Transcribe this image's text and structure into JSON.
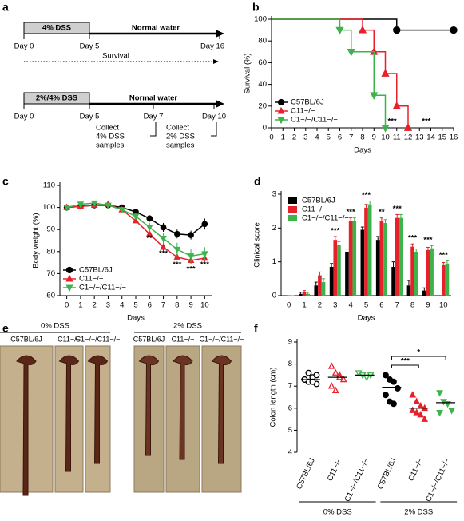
{
  "timeline": {
    "label": "a",
    "protocols": [
      {
        "treatment": "4% DSS",
        "after": "Normal water",
        "days": [
          "Day 0",
          "Day 5",
          "Day 16"
        ],
        "note": "Survival"
      },
      {
        "treatment": "2%/4% DSS",
        "after": "Normal water",
        "days": [
          "Day 0",
          "Day 5",
          "Day 7",
          "Day 10"
        ],
        "collect": [
          [
            "Collect",
            "4% DSS",
            "samples"
          ],
          [
            "Collect",
            "2% DSS",
            "samples"
          ]
        ]
      }
    ]
  },
  "chart_data": [
    {
      "type": "step",
      "label": "b",
      "xlabel": "Days",
      "ylabel": "Survival (%)",
      "xlim": [
        0,
        16
      ],
      "xticks": [
        0,
        1,
        2,
        3,
        4,
        5,
        6,
        7,
        8,
        9,
        10,
        11,
        12,
        13,
        14,
        15,
        16
      ],
      "ylim": [
        0,
        100
      ],
      "yticks": [
        0,
        20,
        40,
        60,
        80,
        100
      ],
      "legend": "lower left",
      "series": [
        {
          "name": "C57BL/6J",
          "color": "#000000",
          "marker": "circle",
          "x": [
            0,
            11,
            16
          ],
          "values": [
            100,
            90,
            90
          ]
        },
        {
          "name": "C11−/−",
          "color": "#e8202a",
          "marker": "triangle",
          "x": [
            0,
            8,
            9,
            10,
            11,
            12
          ],
          "values": [
            100,
            90,
            70,
            50,
            20,
            0
          ]
        },
        {
          "name": "C1−/−/C11−/−",
          "color": "#3cb44b",
          "marker": "down",
          "x": [
            0,
            6,
            7,
            9,
            10
          ],
          "values": [
            100,
            90,
            70,
            30,
            0
          ]
        }
      ],
      "annotations": [
        "***",
        "***"
      ]
    },
    {
      "type": "line",
      "label": "c",
      "xlabel": "Days",
      "ylabel": "Body weight (%)",
      "xlim": [
        -0.5,
        10.5
      ],
      "x": [
        0,
        1,
        2,
        3,
        4,
        5,
        6,
        7,
        8,
        9,
        10
      ],
      "xticks": [
        0,
        1,
        2,
        3,
        4,
        5,
        6,
        7,
        8,
        9,
        10
      ],
      "ylim": [
        60,
        110
      ],
      "yticks": [
        60,
        70,
        80,
        90,
        100,
        110
      ],
      "legend": "lower left",
      "series": [
        {
          "name": "C57BL/6J",
          "color": "#000000",
          "marker": "circle",
          "values": [
            100,
            100.5,
            101,
            101,
            100,
            98,
            95,
            91,
            88,
            87.5,
            92.5
          ],
          "errors": [
            0.5,
            0.5,
            0.5,
            0.8,
            0.8,
            1,
            1.5,
            2,
            2,
            2,
            2.5
          ]
        },
        {
          "name": "C11−/−",
          "color": "#e8202a",
          "marker": "triangle",
          "values": [
            100,
            100.5,
            101,
            101.5,
            99,
            94,
            88,
            82,
            77.5,
            76,
            77
          ],
          "errors": [
            0.5,
            0.5,
            0.5,
            0.8,
            0.8,
            1,
            1.5,
            1.5,
            1.5,
            1.5,
            1.5
          ]
        },
        {
          "name": "C1−/−/C11−/−",
          "color": "#3cb44b",
          "marker": "down",
          "values": [
            100,
            101.5,
            102,
            101,
            99,
            96,
            91,
            86,
            81,
            78,
            79
          ],
          "errors": [
            0.5,
            0.8,
            0.8,
            0.8,
            1,
            1.5,
            2,
            2.5,
            3,
            3,
            3
          ]
        }
      ],
      "annotations": [
        "**",
        "***",
        "***",
        "***",
        "***"
      ]
    },
    {
      "type": "bar",
      "label": "d",
      "xlabel": "Days",
      "ylabel": "Clinical score",
      "categories": [
        "0",
        "1",
        "2",
        "3",
        "4",
        "5",
        "6",
        "7",
        "8",
        "9",
        "10"
      ],
      "ylim": [
        0,
        3
      ],
      "yticks": [
        0,
        1,
        2,
        3
      ],
      "legend": "upper left",
      "series": [
        {
          "name": "C57BL/6J",
          "color": "#000000",
          "values": [
            0,
            0.05,
            0.3,
            0.85,
            1.3,
            1.95,
            1.65,
            0.85,
            0.3,
            0.15,
            0
          ],
          "errors": [
            0,
            0.05,
            0.1,
            0.1,
            0.08,
            0.08,
            0.1,
            0.15,
            0.15,
            0.08,
            0
          ]
        },
        {
          "name": "C11−/−",
          "color": "#e8202a",
          "values": [
            0,
            0.1,
            0.6,
            1.65,
            2.2,
            2.6,
            2.2,
            2.3,
            1.45,
            1.35,
            0.9
          ],
          "errors": [
            0,
            0.05,
            0.1,
            0.1,
            0.1,
            0.1,
            0.1,
            0.1,
            0.08,
            0.08,
            0.08
          ]
        },
        {
          "name": "C1−/−/C11−/−",
          "color": "#3cb44b",
          "values": [
            0,
            0.05,
            0.4,
            1.5,
            2.2,
            2.7,
            2.15,
            2.3,
            1.3,
            1.4,
            0.95
          ],
          "errors": [
            0,
            0.05,
            0.1,
            0.1,
            0.1,
            0.1,
            0.1,
            0.1,
            0.08,
            0.08,
            0.08
          ]
        }
      ],
      "annotations": [
        "***",
        "***",
        "***",
        "**",
        "***",
        "***",
        "***",
        "***"
      ]
    },
    {
      "type": "dot",
      "label": "f",
      "ylabel": "Colon length (cm)",
      "categories": [
        "C57BL/6J",
        "C11−/−",
        "C1−/−/C11−/−",
        "C57BL/6J",
        "C11−/−",
        "C1−/−/C11−/−"
      ],
      "groups": [
        "0% DSS",
        "2% DSS"
      ],
      "ylim": [
        4,
        9
      ],
      "yticks": [
        4,
        5,
        6,
        7,
        8,
        9
      ],
      "colors": [
        "#000000",
        "#e8202a",
        "#3cb44b",
        "#000000",
        "#e8202a",
        "#3cb44b"
      ],
      "markers": [
        "circle",
        "triangle",
        "down",
        "circle",
        "triangle",
        "down"
      ],
      "filled": [
        false,
        false,
        false,
        true,
        true,
        true
      ],
      "values": [
        [
          7.3,
          7.2,
          7.4,
          7.1,
          7.3,
          7.6,
          7.2,
          7.5
        ],
        [
          7.9,
          7.6,
          7.5,
          7.3,
          7.0,
          6.8,
          7.4
        ],
        [
          7.6,
          7.5,
          7.4,
          7.5
        ],
        [
          7.5,
          7.3,
          7.2,
          6.9,
          6.6,
          6.3,
          6.2
        ],
        [
          6.6,
          6.3,
          6.1,
          6.0,
          5.9,
          5.8,
          5.7,
          5.5
        ],
        [
          6.7,
          6.3,
          6.2,
          5.9,
          5.8
        ]
      ],
      "means": [
        7.3,
        7.4,
        7.5,
        6.95,
        6.0,
        6.25
      ],
      "annotations": [
        "***",
        "*"
      ]
    }
  ],
  "photos": {
    "label": "e",
    "groups": [
      {
        "name": "0% DSS",
        "columns": [
          "C57BL/6J",
          "C11−/−",
          "C1−/−/C11−/−"
        ]
      },
      {
        "name": "2% DSS",
        "columns": [
          "C57BL/6J",
          "C11−/−",
          "C1−/−/C11−/−"
        ]
      }
    ]
  }
}
